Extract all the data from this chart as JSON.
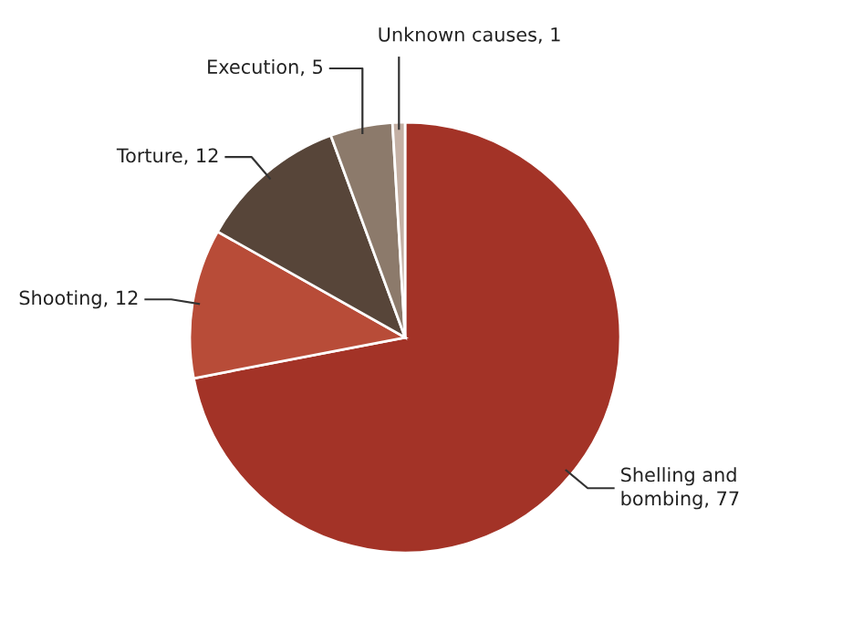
{
  "chart_data": {
    "type": "pie",
    "categories": [
      "Shelling and bombing",
      "Shooting",
      "Torture",
      "Execution",
      "Unknown causes"
    ],
    "values": [
      77,
      12,
      12,
      5,
      1
    ],
    "value_labels": [
      ", 77",
      ", 12",
      ", 12",
      ", 5",
      ", 1"
    ],
    "colors": [
      "#a33327",
      "#b84c38",
      "#574539",
      "#8c7a6b",
      "#c4b0a4"
    ]
  }
}
